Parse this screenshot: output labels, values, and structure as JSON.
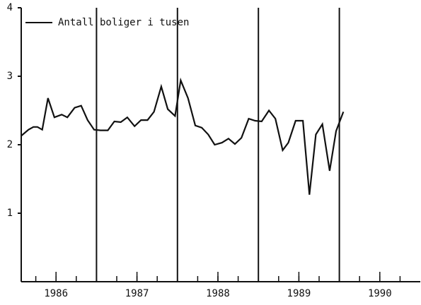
{
  "chart_data": {
    "type": "line",
    "series": [
      {
        "name": "Antall boliger i tusen",
        "color": "#111111",
        "x": [
          1986.07,
          1986.16,
          1986.22,
          1986.27,
          1986.33,
          1986.4,
          1986.48,
          1986.57,
          1986.64,
          1986.73,
          1986.81,
          1986.89,
          1986.97,
          1987.05,
          1987.14,
          1987.22,
          1987.3,
          1987.38,
          1987.47,
          1987.55,
          1987.63,
          1987.71,
          1987.8,
          1987.88,
          1987.97,
          1988.04,
          1988.13,
          1988.22,
          1988.3,
          1988.38,
          1988.46,
          1988.55,
          1988.63,
          1988.71,
          1988.79,
          1988.88,
          1988.96,
          1989.04,
          1989.13,
          1989.21,
          1989.3,
          1989.37,
          1989.46,
          1989.55,
          1989.63,
          1989.71,
          1989.79,
          1989.88,
          1989.96,
          1990.05
        ],
        "values": [
          2.13,
          2.22,
          2.26,
          2.26,
          2.22,
          2.68,
          2.4,
          2.44,
          2.4,
          2.54,
          2.57,
          2.36,
          2.22,
          2.21,
          2.21,
          2.34,
          2.33,
          2.4,
          2.27,
          2.36,
          2.36,
          2.48,
          2.85,
          2.52,
          2.42,
          2.94,
          2.68,
          2.28,
          2.25,
          2.15,
          2.0,
          2.03,
          2.09,
          2.01,
          2.1,
          2.38,
          2.35,
          2.34,
          2.5,
          2.38,
          1.92,
          2.03,
          2.35,
          2.35,
          1.27,
          2.15,
          2.3,
          1.62,
          2.2,
          2.48
        ]
      }
    ],
    "xlim": [
      1986.07,
      1991
    ],
    "xticks": [
      {
        "value": 1986.5,
        "label": "1986"
      },
      {
        "value": 1987.5,
        "label": "1987"
      },
      {
        "value": 1988.5,
        "label": "1988"
      },
      {
        "value": 1989.5,
        "label": "1989"
      },
      {
        "value": 1990.5,
        "label": "1990"
      }
    ],
    "minor_xticks": [
      1986.25,
      1986.5,
      1986.75,
      1987.25,
      1987.5,
      1987.75,
      1988.25,
      1988.5,
      1988.75,
      1989.25,
      1989.5,
      1989.75,
      1990.25,
      1990.5,
      1990.75
    ],
    "vlines": [
      1987,
      1988,
      1989,
      1990
    ],
    "ylim": [
      0,
      4
    ],
    "yticks": [
      1,
      2,
      3,
      4
    ],
    "legend": "upper left"
  }
}
